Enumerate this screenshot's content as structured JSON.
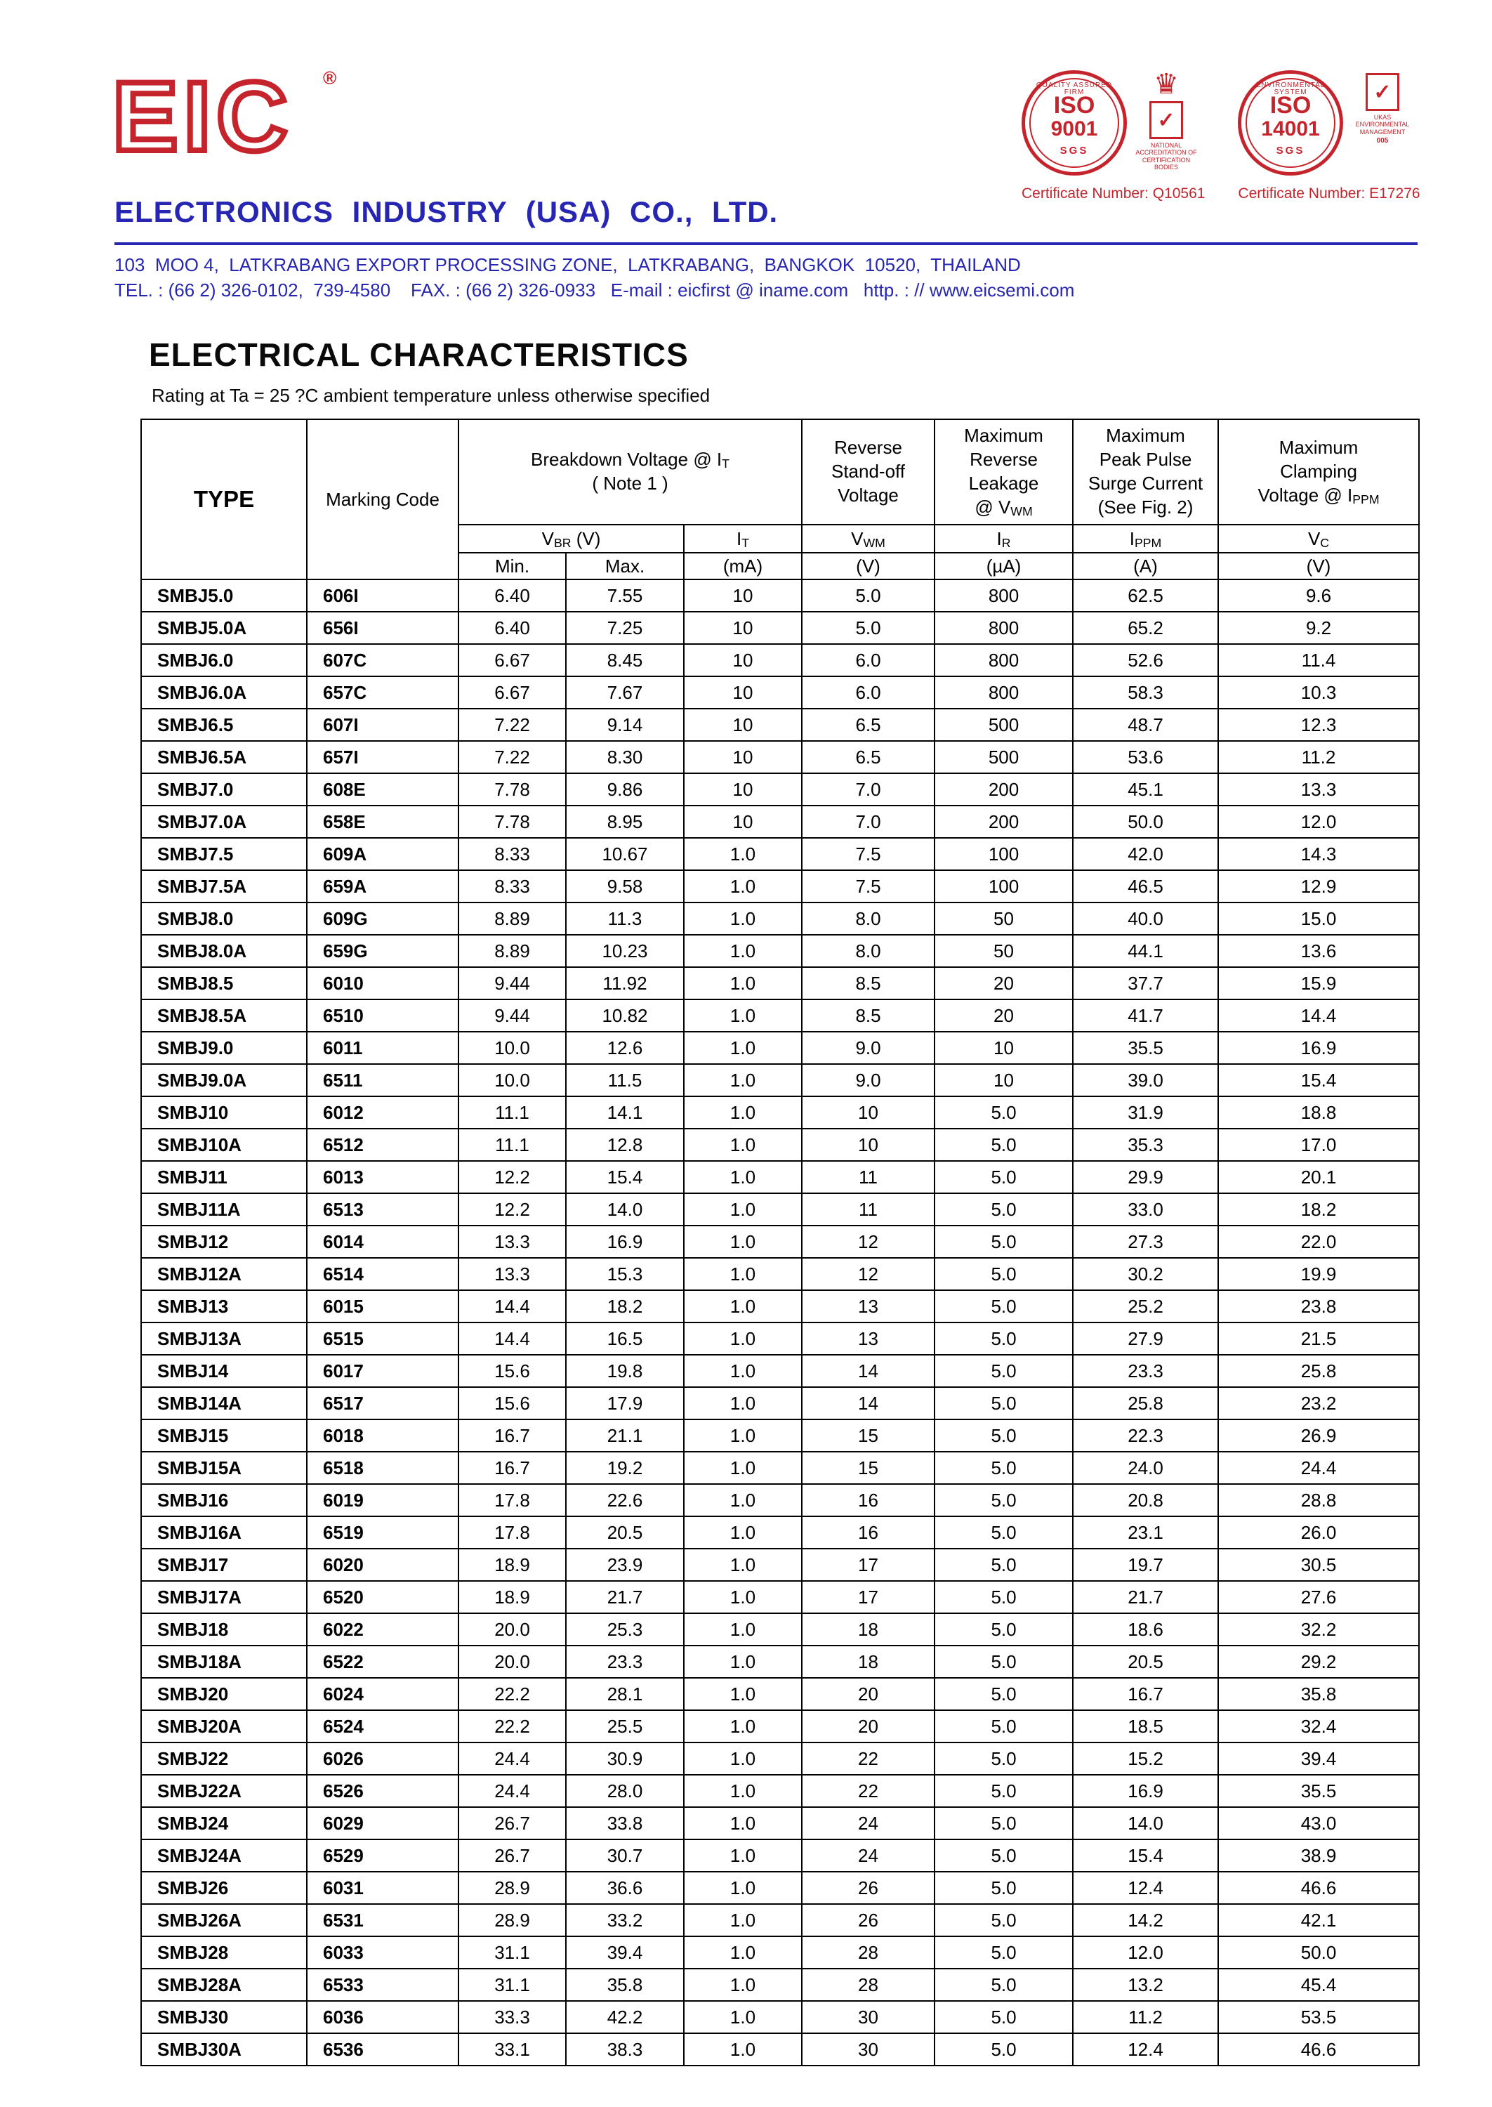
{
  "icons": {
    "registered": "®",
    "crown": "♛",
    "check": "✓"
  },
  "page": {
    "logo_text": "EIC",
    "company_name": "ELECTRONICS INDUSTRY (USA) CO., LTD.",
    "address_line": "103  MOO 4,  LATKRABANG EXPORT PROCESSING ZONE,  LATKRABANG,  BANGKOK  10520,  THAILAND",
    "contact_line": "TEL. : (66 2) 326-0102,  739-4580    FAX. : (66 2) 326-0933   E-mail : eicfirst @ iname.com   http. : // www.eicsemi.com",
    "title": "ELECTRICAL CHARACTERISTICS",
    "subtitle": "Rating at Ta = 25 ?C ambient temperature unless otherwise specified"
  },
  "certifications": {
    "items": [
      {
        "iso": "ISO",
        "number": "9001",
        "agency": "SGS",
        "ring_text": "QUALITY ASSURED FIRM",
        "emblem_caption": "NATIONAL ACCREDITATION OF CERTIFICATION BODIES",
        "emblem_footnote": "",
        "cert_number": "Certificate Number: Q10561"
      },
      {
        "iso": "ISO",
        "number": "14001",
        "agency": "SGS",
        "ring_text": "ENVIRONMENTAL SYSTEM",
        "emblem_caption": "UKAS ENVIRONMENTAL MANAGEMENT",
        "emblem_footnote": "005",
        "cert_number": "Certificate Number: E17276"
      }
    ]
  },
  "table": {
    "header": {
      "type_label": "TYPE",
      "marking_label": "Marking Code",
      "groups": [
        {
          "colspan": 3,
          "lines": [
            [
              "Breakdown Voltage @  I",
              {
                "sub": "T"
              }
            ],
            [
              "( Note 1 )"
            ]
          ]
        },
        {
          "colspan": 1,
          "lines": [
            [
              "Reverse"
            ],
            [
              "Stand-off"
            ],
            [
              "Voltage"
            ]
          ]
        },
        {
          "colspan": 1,
          "lines": [
            [
              "Maximum"
            ],
            [
              "Reverse"
            ],
            [
              "Leakage"
            ],
            [
              "@ V",
              {
                "sub": "WM"
              }
            ]
          ]
        },
        {
          "colspan": 1,
          "lines": [
            [
              "Maximum"
            ],
            [
              "Peak Pulse"
            ],
            [
              "Surge Current"
            ],
            [
              "(See Fig. 2)"
            ]
          ]
        },
        {
          "colspan": 1,
          "lines": [
            [
              "Maximum"
            ],
            [
              "Clamping"
            ],
            [
              "Voltage @ I",
              {
                "sub": "PPM"
              }
            ]
          ]
        }
      ],
      "symbols": [
        {
          "colspan": 2,
          "parts": [
            "V",
            {
              "sub": "BR"
            },
            "  (V)"
          ]
        },
        {
          "colspan": 1,
          "parts": [
            "I",
            {
              "sub": "T"
            }
          ]
        },
        {
          "colspan": 1,
          "parts": [
            "V",
            {
              "sub": "WM"
            }
          ]
        },
        {
          "colspan": 1,
          "parts": [
            "I",
            {
              "sub": "R"
            }
          ]
        },
        {
          "colspan": 1,
          "parts": [
            "I",
            {
              "sub": "PPM"
            }
          ]
        },
        {
          "colspan": 1,
          "parts": [
            "V",
            {
              "sub": "C"
            }
          ]
        }
      ],
      "units": [
        "Min.",
        "Max.",
        "(mA)",
        "(V)",
        "(µA)",
        "(A)",
        "(V)"
      ]
    },
    "rows": [
      [
        "SMBJ5.0",
        "606I",
        "6.40",
        "7.55",
        "10",
        "5.0",
        "800",
        "62.5",
        "9.6"
      ],
      [
        "SMBJ5.0A",
        "656I",
        "6.40",
        "7.25",
        "10",
        "5.0",
        "800",
        "65.2",
        "9.2"
      ],
      [
        "SMBJ6.0",
        "607C",
        "6.67",
        "8.45",
        "10",
        "6.0",
        "800",
        "52.6",
        "11.4"
      ],
      [
        "SMBJ6.0A",
        "657C",
        "6.67",
        "7.67",
        "10",
        "6.0",
        "800",
        "58.3",
        "10.3"
      ],
      [
        "SMBJ6.5",
        "607I",
        "7.22",
        "9.14",
        "10",
        "6.5",
        "500",
        "48.7",
        "12.3"
      ],
      [
        "SMBJ6.5A",
        "657I",
        "7.22",
        "8.30",
        "10",
        "6.5",
        "500",
        "53.6",
        "11.2"
      ],
      [
        "SMBJ7.0",
        "608E",
        "7.78",
        "9.86",
        "10",
        "7.0",
        "200",
        "45.1",
        "13.3"
      ],
      [
        "SMBJ7.0A",
        "658E",
        "7.78",
        "8.95",
        "10",
        "7.0",
        "200",
        "50.0",
        "12.0"
      ],
      [
        "SMBJ7.5",
        "609A",
        "8.33",
        "10.67",
        "1.0",
        "7.5",
        "100",
        "42.0",
        "14.3"
      ],
      [
        "SMBJ7.5A",
        "659A",
        "8.33",
        "9.58",
        "1.0",
        "7.5",
        "100",
        "46.5",
        "12.9"
      ],
      [
        "SMBJ8.0",
        "609G",
        "8.89",
        "11.3",
        "1.0",
        "8.0",
        "50",
        "40.0",
        "15.0"
      ],
      [
        "SMBJ8.0A",
        "659G",
        "8.89",
        "10.23",
        "1.0",
        "8.0",
        "50",
        "44.1",
        "13.6"
      ],
      [
        "SMBJ8.5",
        "6010",
        "9.44",
        "11.92",
        "1.0",
        "8.5",
        "20",
        "37.7",
        "15.9"
      ],
      [
        "SMBJ8.5A",
        "6510",
        "9.44",
        "10.82",
        "1.0",
        "8.5",
        "20",
        "41.7",
        "14.4"
      ],
      [
        "SMBJ9.0",
        "6011",
        "10.0",
        "12.6",
        "1.0",
        "9.0",
        "10",
        "35.5",
        "16.9"
      ],
      [
        "SMBJ9.0A",
        "6511",
        "10.0",
        "11.5",
        "1.0",
        "9.0",
        "10",
        "39.0",
        "15.4"
      ],
      [
        "SMBJ10",
        "6012",
        "11.1",
        "14.1",
        "1.0",
        "10",
        "5.0",
        "31.9",
        "18.8"
      ],
      [
        "SMBJ10A",
        "6512",
        "11.1",
        "12.8",
        "1.0",
        "10",
        "5.0",
        "35.3",
        "17.0"
      ],
      [
        "SMBJ11",
        "6013",
        "12.2",
        "15.4",
        "1.0",
        "11",
        "5.0",
        "29.9",
        "20.1"
      ],
      [
        "SMBJ11A",
        "6513",
        "12.2",
        "14.0",
        "1.0",
        "11",
        "5.0",
        "33.0",
        "18.2"
      ],
      [
        "SMBJ12",
        "6014",
        "13.3",
        "16.9",
        "1.0",
        "12",
        "5.0",
        "27.3",
        "22.0"
      ],
      [
        "SMBJ12A",
        "6514",
        "13.3",
        "15.3",
        "1.0",
        "12",
        "5.0",
        "30.2",
        "19.9"
      ],
      [
        "SMBJ13",
        "6015",
        "14.4",
        "18.2",
        "1.0",
        "13",
        "5.0",
        "25.2",
        "23.8"
      ],
      [
        "SMBJ13A",
        "6515",
        "14.4",
        "16.5",
        "1.0",
        "13",
        "5.0",
        "27.9",
        "21.5"
      ],
      [
        "SMBJ14",
        "6017",
        "15.6",
        "19.8",
        "1.0",
        "14",
        "5.0",
        "23.3",
        "25.8"
      ],
      [
        "SMBJ14A",
        "6517",
        "15.6",
        "17.9",
        "1.0",
        "14",
        "5.0",
        "25.8",
        "23.2"
      ],
      [
        "SMBJ15",
        "6018",
        "16.7",
        "21.1",
        "1.0",
        "15",
        "5.0",
        "22.3",
        "26.9"
      ],
      [
        "SMBJ15A",
        "6518",
        "16.7",
        "19.2",
        "1.0",
        "15",
        "5.0",
        "24.0",
        "24.4"
      ],
      [
        "SMBJ16",
        "6019",
        "17.8",
        "22.6",
        "1.0",
        "16",
        "5.0",
        "20.8",
        "28.8"
      ],
      [
        "SMBJ16A",
        "6519",
        "17.8",
        "20.5",
        "1.0",
        "16",
        "5.0",
        "23.1",
        "26.0"
      ],
      [
        "SMBJ17",
        "6020",
        "18.9",
        "23.9",
        "1.0",
        "17",
        "5.0",
        "19.7",
        "30.5"
      ],
      [
        "SMBJ17A",
        "6520",
        "18.9",
        "21.7",
        "1.0",
        "17",
        "5.0",
        "21.7",
        "27.6"
      ],
      [
        "SMBJ18",
        "6022",
        "20.0",
        "25.3",
        "1.0",
        "18",
        "5.0",
        "18.6",
        "32.2"
      ],
      [
        "SMBJ18A",
        "6522",
        "20.0",
        "23.3",
        "1.0",
        "18",
        "5.0",
        "20.5",
        "29.2"
      ],
      [
        "SMBJ20",
        "6024",
        "22.2",
        "28.1",
        "1.0",
        "20",
        "5.0",
        "16.7",
        "35.8"
      ],
      [
        "SMBJ20A",
        "6524",
        "22.2",
        "25.5",
        "1.0",
        "20",
        "5.0",
        "18.5",
        "32.4"
      ],
      [
        "SMBJ22",
        "6026",
        "24.4",
        "30.9",
        "1.0",
        "22",
        "5.0",
        "15.2",
        "39.4"
      ],
      [
        "SMBJ22A",
        "6526",
        "24.4",
        "28.0",
        "1.0",
        "22",
        "5.0",
        "16.9",
        "35.5"
      ],
      [
        "SMBJ24",
        "6029",
        "26.7",
        "33.8",
        "1.0",
        "24",
        "5.0",
        "14.0",
        "43.0"
      ],
      [
        "SMBJ24A",
        "6529",
        "26.7",
        "30.7",
        "1.0",
        "24",
        "5.0",
        "15.4",
        "38.9"
      ],
      [
        "SMBJ26",
        "6031",
        "28.9",
        "36.6",
        "1.0",
        "26",
        "5.0",
        "12.4",
        "46.6"
      ],
      [
        "SMBJ26A",
        "6531",
        "28.9",
        "33.2",
        "1.0",
        "26",
        "5.0",
        "14.2",
        "42.1"
      ],
      [
        "SMBJ28",
        "6033",
        "31.1",
        "39.4",
        "1.0",
        "28",
        "5.0",
        "12.0",
        "50.0"
      ],
      [
        "SMBJ28A",
        "6533",
        "31.1",
        "35.8",
        "1.0",
        "28",
        "5.0",
        "13.2",
        "45.4"
      ],
      [
        "SMBJ30",
        "6036",
        "33.3",
        "42.2",
        "1.0",
        "30",
        "5.0",
        "11.2",
        "53.5"
      ],
      [
        "SMBJ30A",
        "6536",
        "33.1",
        "38.3",
        "1.0",
        "30",
        "5.0",
        "12.4",
        "46.6"
      ]
    ]
  }
}
